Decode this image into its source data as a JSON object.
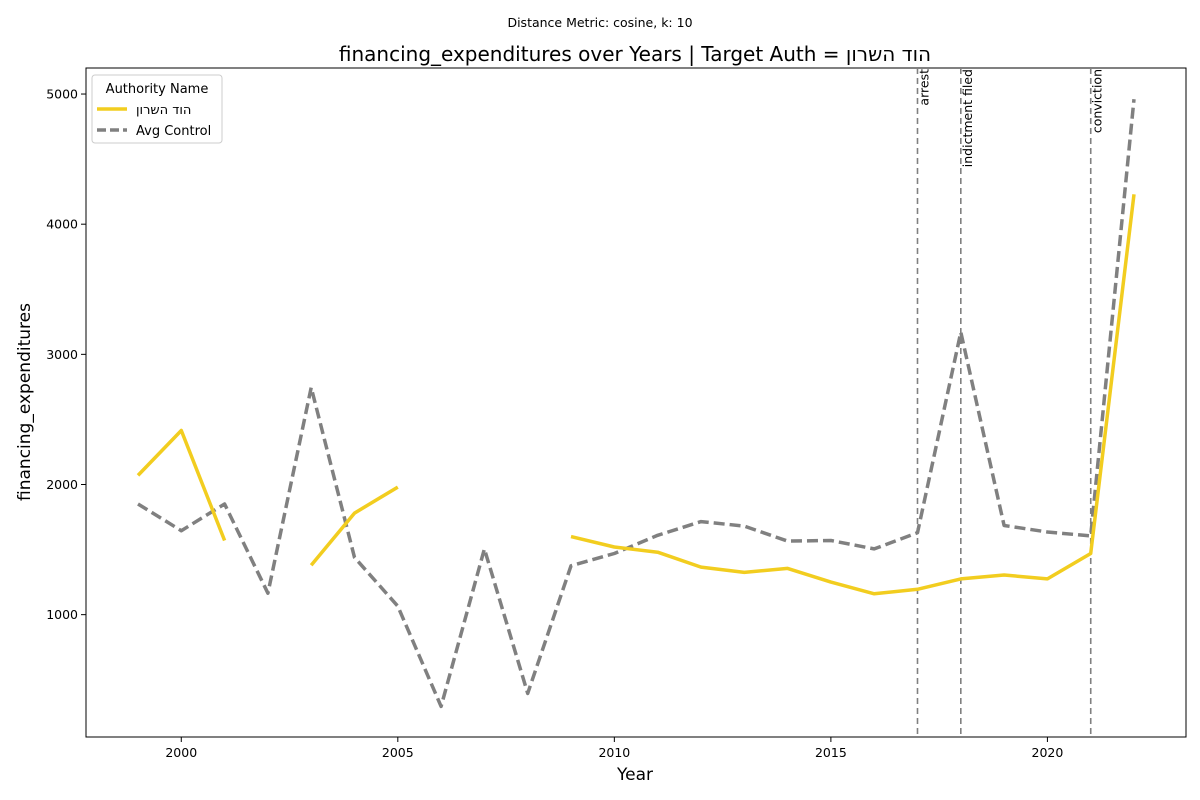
{
  "chart_data": {
    "type": "line",
    "suptitle": "Distance Metric: cosine, k: 10",
    "title": "financing_expenditures over Years | Target Auth = הוד השרון",
    "xlabel": "Year",
    "ylabel": "financing_expenditures",
    "xlim": [
      1997.8,
      2023.2
    ],
    "ylim": [
      60,
      5200
    ],
    "xticks": [
      2000,
      2005,
      2010,
      2015,
      2020
    ],
    "yticks": [
      1000,
      2000,
      3000,
      4000,
      5000
    ],
    "grid": false,
    "legend": {
      "title": "Authority Name",
      "placement": "upper left"
    },
    "series": [
      {
        "name": "הוד השרון",
        "color": "#f2cd1f",
        "style": "solid",
        "points": [
          [
            1999,
            2070
          ],
          [
            2000,
            2415
          ],
          [
            2001,
            1570
          ],
          [
            2002,
            null
          ],
          [
            2003,
            1380
          ],
          [
            2004,
            1780
          ],
          [
            2005,
            1980
          ],
          [
            2006,
            null
          ],
          [
            2007,
            null
          ],
          [
            2008,
            null
          ],
          [
            2009,
            1600
          ],
          [
            2010,
            1520
          ],
          [
            2011,
            1480
          ],
          [
            2012,
            1365
          ],
          [
            2013,
            1325
          ],
          [
            2014,
            1355
          ],
          [
            2015,
            1250
          ],
          [
            2016,
            1160
          ],
          [
            2017,
            1195
          ],
          [
            2018,
            1275
          ],
          [
            2019,
            1305
          ],
          [
            2020,
            1275
          ],
          [
            2021,
            1470
          ],
          [
            2022,
            4230
          ]
        ]
      },
      {
        "name": "Avg Control",
        "color": "#808080",
        "style": "dashed",
        "points": [
          [
            1999,
            1850
          ],
          [
            2000,
            1645
          ],
          [
            2001,
            1850
          ],
          [
            2002,
            1165
          ],
          [
            2003,
            2745
          ],
          [
            2004,
            1440
          ],
          [
            2005,
            1065
          ],
          [
            2006,
            295
          ],
          [
            2007,
            1505
          ],
          [
            2008,
            395
          ],
          [
            2009,
            1375
          ],
          [
            2010,
            1470
          ],
          [
            2011,
            1610
          ],
          [
            2012,
            1715
          ],
          [
            2013,
            1680
          ],
          [
            2014,
            1565
          ],
          [
            2015,
            1570
          ],
          [
            2016,
            1505
          ],
          [
            2017,
            1630
          ],
          [
            2018,
            3170
          ],
          [
            2019,
            1685
          ],
          [
            2020,
            1635
          ],
          [
            2021,
            1605
          ],
          [
            2022,
            4960
          ]
        ]
      }
    ],
    "events": [
      {
        "x": 2017,
        "label": "arrest"
      },
      {
        "x": 2018,
        "label": "indictment filed"
      },
      {
        "x": 2021,
        "label": "conviction"
      }
    ]
  }
}
